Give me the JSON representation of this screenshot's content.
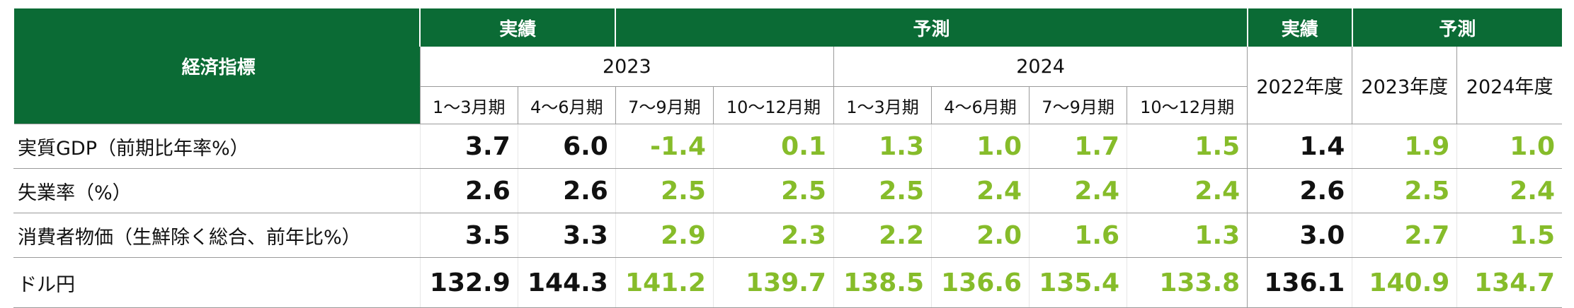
{
  "table": {
    "label_header": "経済指標",
    "bands": {
      "actual_q": "実績",
      "forecast_q": "予測",
      "actual_fy": "実績",
      "forecast_fy": "予測"
    },
    "years": {
      "y2023": "2023",
      "y2024": "2024"
    },
    "fy_headers": [
      "2022年度",
      "2023年度",
      "2024年度"
    ],
    "periods": [
      "1〜3月期",
      "4〜6月期",
      "7〜9月期",
      "10〜12月期",
      "1〜3月期",
      "4〜6月期",
      "7〜9月期",
      "10〜12月期"
    ],
    "rows": [
      {
        "label": "実質GDP（前期比年率%）",
        "values": [
          "3.7",
          "6.0",
          "-1.4",
          "0.1",
          "1.3",
          "1.0",
          "1.7",
          "1.5",
          "1.4",
          "1.9",
          "1.0"
        ]
      },
      {
        "label": "失業率（%）",
        "values": [
          "2.6",
          "2.6",
          "2.5",
          "2.5",
          "2.5",
          "2.4",
          "2.4",
          "2.4",
          "2.6",
          "2.5",
          "2.4"
        ]
      },
      {
        "label": "消費者物価（生鮮除く総合、前年比%）",
        "values": [
          "3.5",
          "3.3",
          "2.9",
          "2.3",
          "2.2",
          "2.0",
          "1.6",
          "1.3",
          "3.0",
          "2.7",
          "1.5"
        ]
      },
      {
        "label": "ドル円",
        "values": [
          "132.9",
          "144.3",
          "141.2",
          "139.7",
          "138.5",
          "136.6",
          "135.4",
          "133.8",
          "136.1",
          "140.9",
          "134.7"
        ]
      }
    ]
  },
  "colors": {
    "header_green": "#0b6b35",
    "forecast_green": "#86bc2a",
    "actual_text": "#111111"
  }
}
